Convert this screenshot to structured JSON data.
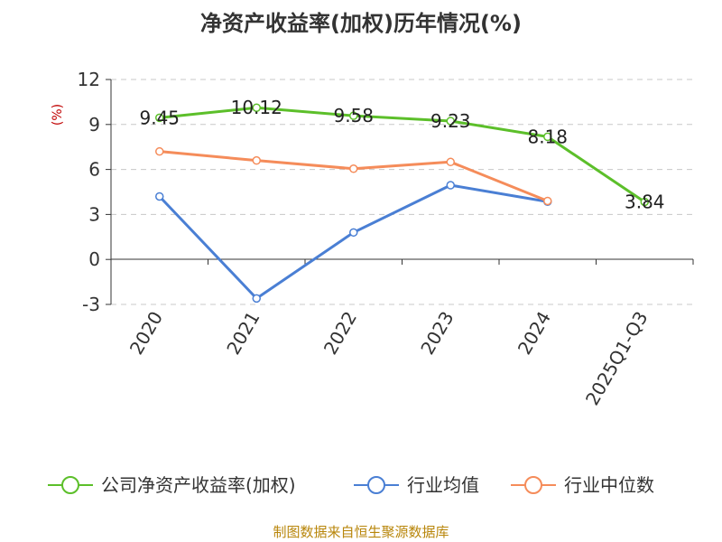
{
  "chart_data": {
    "type": "line",
    "title": "净资产收益率(加权)历年情况(%)",
    "ylabel": "(%)",
    "xlabel": "",
    "categories": [
      "2020",
      "2021",
      "2022",
      "2023",
      "2024",
      "2025Q1-Q3"
    ],
    "ylim": [
      -3,
      12
    ],
    "yticks": [
      -3,
      0,
      3,
      6,
      9,
      12
    ],
    "grid": true,
    "legend_position": "bottom",
    "series": [
      {
        "name": "公司净资产收益率(加权)",
        "color": "#5cbf2a",
        "values": [
          9.45,
          10.12,
          9.58,
          9.23,
          8.18,
          3.84
        ],
        "labels": [
          "9.45",
          "10.12",
          "9.58",
          "9.23",
          "8.18",
          "3.84"
        ]
      },
      {
        "name": "行业均值",
        "color": "#4a7fd4",
        "values": [
          4.2,
          -2.6,
          1.8,
          4.95,
          3.85,
          null
        ]
      },
      {
        "name": "行业中位数",
        "color": "#f58c5a",
        "values": [
          7.2,
          6.6,
          6.05,
          6.5,
          3.9,
          null
        ]
      }
    ]
  },
  "source": "制图数据来自恒生聚源数据库"
}
